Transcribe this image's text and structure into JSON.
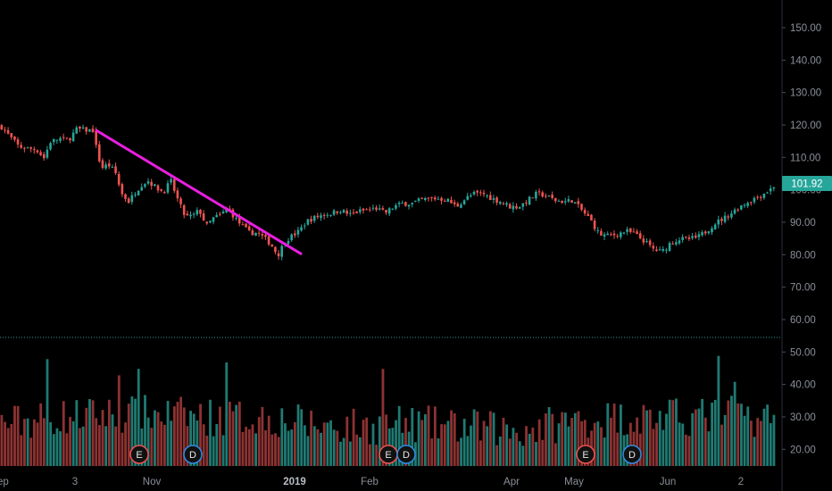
{
  "chart_data": {
    "type": "candlestick",
    "title": "",
    "xlabel": "",
    "ylabel": "",
    "ylim": [
      14,
      156
    ],
    "grid": false,
    "last_price_label": "101.92",
    "last_price": 101.92,
    "y_ticks": [
      "150.00",
      "140.00",
      "130.00",
      "120.00",
      "110.00",
      "100.00",
      "90.00",
      "80.00",
      "70.00",
      "60.00",
      "50.00",
      "40.00",
      "30.00",
      "20.00"
    ],
    "x_ticks": [
      "ep",
      "3",
      "Nov",
      "2019",
      "Feb",
      "Apr",
      "May",
      "Jun",
      "2"
    ],
    "colors": {
      "up": "#26a69a",
      "down": "#ef5350",
      "trendline": "#e81fe0",
      "axis_text": "#8a8f98",
      "badge_earnings": "#ef5350",
      "badge_dividend": "#2f8de4",
      "price_tag": "#26a69a"
    },
    "price_path": [
      [
        0,
        119.8
      ],
      [
        10,
        116.5
      ],
      [
        20,
        113.5
      ],
      [
        30,
        113
      ],
      [
        40,
        112.5
      ],
      [
        48,
        110
      ],
      [
        55,
        115
      ],
      [
        65,
        116
      ],
      [
        75,
        115.5
      ],
      [
        85,
        119
      ],
      [
        95,
        118.6
      ],
      [
        103,
        118.5
      ],
      [
        108,
        111
      ],
      [
        113,
        107
      ],
      [
        120,
        108
      ],
      [
        128,
        105.5
      ],
      [
        135,
        99
      ],
      [
        143,
        96.5
      ],
      [
        150,
        99.5
      ],
      [
        158,
        102
      ],
      [
        165,
        103
      ],
      [
        173,
        101
      ],
      [
        182,
        99.5
      ],
      [
        190,
        103
      ],
      [
        198,
        97
      ],
      [
        206,
        92
      ],
      [
        214,
        92
      ],
      [
        222,
        94
      ],
      [
        230,
        89
      ],
      [
        238,
        91.5
      ],
      [
        246,
        92.5
      ],
      [
        254,
        94.5
      ],
      [
        262,
        91.5
      ],
      [
        270,
        89
      ],
      [
        278,
        87
      ],
      [
        286,
        87
      ],
      [
        294,
        85.5
      ],
      [
        302,
        83.5
      ],
      [
        310,
        80
      ],
      [
        318,
        84.5
      ],
      [
        326,
        86
      ],
      [
        334,
        87.5
      ],
      [
        342,
        90.5
      ],
      [
        350,
        91.5
      ],
      [
        360,
        92.5
      ],
      [
        370,
        93
      ],
      [
        380,
        94
      ],
      [
        390,
        92.5
      ],
      [
        400,
        93.5
      ],
      [
        410,
        94
      ],
      [
        420,
        94.5
      ],
      [
        430,
        93
      ],
      [
        440,
        95
      ],
      [
        450,
        96
      ],
      [
        460,
        96
      ],
      [
        470,
        97
      ],
      [
        480,
        97.5
      ],
      [
        490,
        97.5
      ],
      [
        500,
        97
      ],
      [
        510,
        95
      ],
      [
        520,
        97.5
      ],
      [
        530,
        99
      ],
      [
        540,
        99
      ],
      [
        550,
        97.5
      ],
      [
        560,
        96.5
      ],
      [
        570,
        95
      ],
      [
        580,
        95
      ],
      [
        590,
        97
      ],
      [
        600,
        99
      ],
      [
        610,
        98.5
      ],
      [
        620,
        97
      ],
      [
        630,
        96.5
      ],
      [
        640,
        97
      ],
      [
        650,
        94
      ],
      [
        660,
        91
      ],
      [
        670,
        86.5
      ],
      [
        680,
        86
      ],
      [
        690,
        86.5
      ],
      [
        700,
        87.5
      ],
      [
        710,
        86.5
      ],
      [
        720,
        84.5
      ],
      [
        730,
        82
      ],
      [
        740,
        81
      ],
      [
        750,
        84
      ],
      [
        760,
        85
      ],
      [
        770,
        85
      ],
      [
        780,
        85.5
      ],
      [
        790,
        87.5
      ],
      [
        800,
        90
      ],
      [
        810,
        91.5
      ],
      [
        820,
        93.5
      ],
      [
        830,
        95.5
      ],
      [
        840,
        97
      ],
      [
        850,
        98.5
      ],
      [
        860,
        100
      ],
      [
        868,
        101.9
      ]
    ],
    "volume_path": [
      [
        0,
        28
      ],
      [
        60,
        30
      ],
      [
        120,
        31
      ],
      [
        180,
        31
      ],
      [
        240,
        30
      ],
      [
        300,
        30
      ],
      [
        340,
        28
      ],
      [
        400,
        27
      ],
      [
        460,
        28
      ],
      [
        520,
        27
      ],
      [
        580,
        26
      ],
      [
        640,
        29
      ],
      [
        700,
        30
      ],
      [
        760,
        30
      ],
      [
        820,
        31
      ],
      [
        868,
        29
      ]
    ],
    "volume_spikes": [
      [
        52,
        48
      ],
      [
        133,
        43
      ],
      [
        155,
        45
      ],
      [
        253,
        47
      ],
      [
        428,
        45
      ],
      [
        803,
        49
      ],
      [
        822,
        41
      ]
    ],
    "trendline": {
      "x1": 108,
      "y1": 118.5,
      "x2": 337,
      "y2": 80.5
    },
    "events": [
      {
        "label": "E",
        "kind": "earnings",
        "x": 156
      },
      {
        "label": "D",
        "kind": "dividend",
        "x": 216
      },
      {
        "label": "E",
        "kind": "earnings",
        "x": 435
      },
      {
        "label": "D",
        "kind": "dividend",
        "x": 455
      },
      {
        "label": "E",
        "kind": "earnings",
        "x": 656
      },
      {
        "label": "D",
        "kind": "dividend",
        "x": 708
      }
    ]
  }
}
